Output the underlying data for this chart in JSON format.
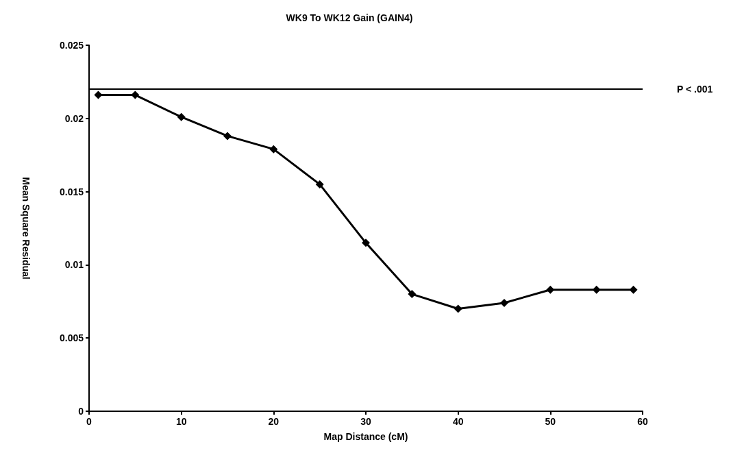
{
  "chart_data": {
    "type": "line",
    "title": "WK9 To WK12 Gain (GAIN4)",
    "xlabel": "Map Distance (cM)",
    "ylabel": "Mean Square Residual",
    "x": [
      1,
      5,
      10,
      15,
      20,
      25,
      30,
      35,
      40,
      45,
      50,
      55,
      59
    ],
    "series": [
      {
        "color": "#000000",
        "values": [
          0.0216,
          0.0216,
          0.0201,
          0.0188,
          0.0179,
          0.0155,
          0.0115,
          0.008,
          0.007,
          0.0074,
          0.0083,
          0.0083,
          0.0083
        ]
      }
    ],
    "xlim": [
      0,
      60
    ],
    "xticks": [
      0,
      10,
      20,
      30,
      40,
      50,
      60
    ],
    "ylim": [
      0,
      0.025
    ],
    "yticks": [
      0,
      0.005,
      0.01,
      0.015,
      0.02,
      0.025
    ],
    "ref_lines": [
      {
        "axis": "y",
        "value": 0.022,
        "label": "P < .001",
        "color": "#000000"
      }
    ],
    "grid": false,
    "marker": "diamond",
    "line_style": "solid"
  }
}
